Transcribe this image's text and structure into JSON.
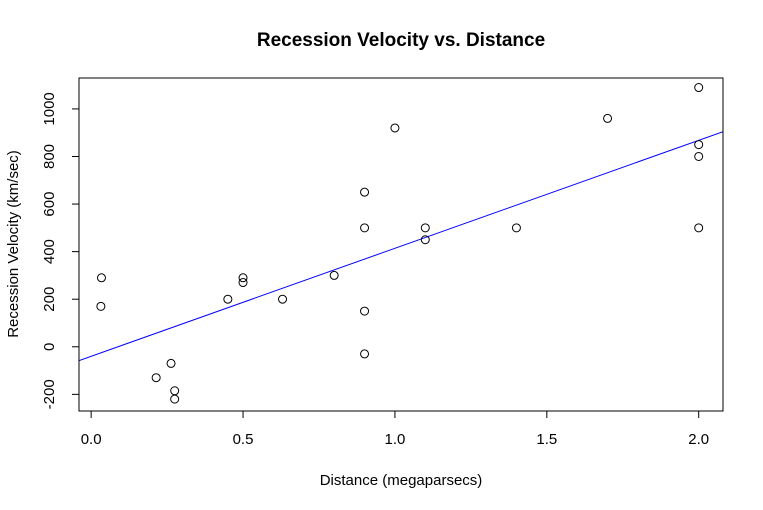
{
  "chart_data": {
    "type": "scatter",
    "title": "Recession Velocity vs. Distance",
    "xlabel": "Distance (megaparsecs)",
    "ylabel": "Recession Velocity (km/sec)",
    "xlim": [
      -0.04,
      2.08
    ],
    "ylim": [
      -270,
      1130
    ],
    "xticks": [
      "0.0",
      "0.5",
      "1.0",
      "1.5",
      "2.0"
    ],
    "yticks": [
      "-200",
      "0",
      "200",
      "400",
      "600",
      "800",
      "1000"
    ],
    "points": [
      {
        "x": 0.032,
        "y": 170
      },
      {
        "x": 0.034,
        "y": 290
      },
      {
        "x": 0.214,
        "y": -130
      },
      {
        "x": 0.263,
        "y": -70
      },
      {
        "x": 0.275,
        "y": -185
      },
      {
        "x": 0.275,
        "y": -220
      },
      {
        "x": 0.45,
        "y": 200
      },
      {
        "x": 0.5,
        "y": 290
      },
      {
        "x": 0.5,
        "y": 270
      },
      {
        "x": 0.63,
        "y": 200
      },
      {
        "x": 0.8,
        "y": 300
      },
      {
        "x": 0.9,
        "y": -30
      },
      {
        "x": 0.9,
        "y": 650
      },
      {
        "x": 0.9,
        "y": 150
      },
      {
        "x": 0.9,
        "y": 500
      },
      {
        "x": 1.0,
        "y": 920
      },
      {
        "x": 1.1,
        "y": 450
      },
      {
        "x": 1.1,
        "y": 500
      },
      {
        "x": 1.4,
        "y": 500
      },
      {
        "x": 1.7,
        "y": 960
      },
      {
        "x": 2.0,
        "y": 500
      },
      {
        "x": 2.0,
        "y": 850
      },
      {
        "x": 2.0,
        "y": 800
      },
      {
        "x": 2.0,
        "y": 1090
      }
    ],
    "fit_line": {
      "intercept": -40,
      "slope": 454,
      "color": "#0000ff"
    },
    "point_color": "#000000",
    "grid": false,
    "legend": "none"
  }
}
